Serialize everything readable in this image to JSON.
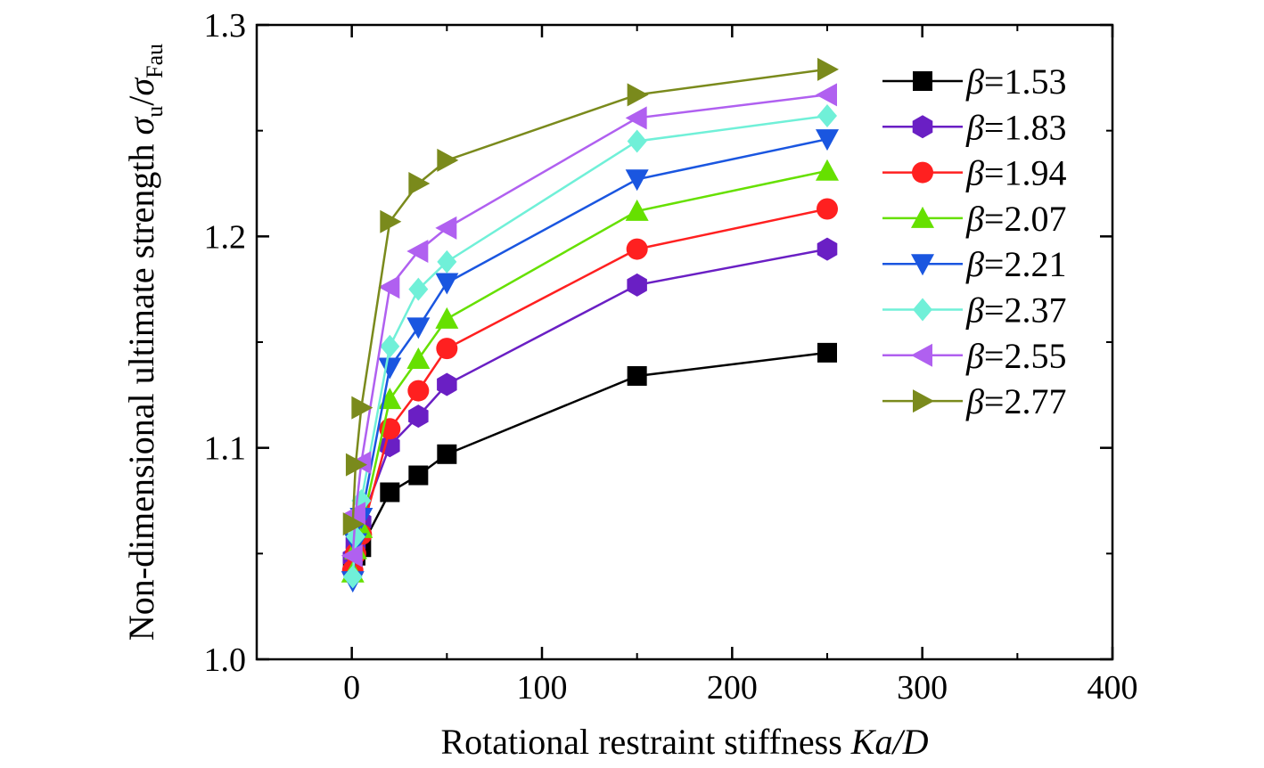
{
  "chart_data": {
    "type": "line",
    "xlabel": "Rotational restraint stiffness Ka/D",
    "xlabel_parts": {
      "prefix": "Rotational restraint stiffness ",
      "variable": "Ka/D"
    },
    "ylabel": "Non-dimensional ultimate strength σu/σFau",
    "ylabel_parts": {
      "prefix": "Non-dimensional ultimate strength ",
      "sym1": "σ",
      "sub1": "u",
      "slash": "/",
      "sym2": "σ",
      "sub2": "Fau"
    },
    "xlim": [
      -50,
      400
    ],
    "ylim": [
      1.0,
      1.3
    ],
    "xticks": [
      0,
      100,
      200,
      300,
      400
    ],
    "yticks": [
      1.0,
      1.1,
      1.2,
      1.3
    ],
    "x": [
      0.5,
      2,
      5,
      20,
      35,
      50,
      150,
      250
    ],
    "legend_position": "top-right",
    "series": [
      {
        "name": "β=1.53",
        "beta": "1.53",
        "color": "#000000",
        "marker": "square",
        "values": [
          1.046,
          1.049,
          1.053,
          1.079,
          1.087,
          1.097,
          1.134,
          1.145
        ]
      },
      {
        "name": "β=1.83",
        "beta": "1.83",
        "color": "#6a1fc4",
        "marker": "hexagon",
        "values": [
          1.048,
          1.055,
          1.065,
          1.101,
          1.115,
          1.13,
          1.177,
          1.194
        ]
      },
      {
        "name": "β=1.94",
        "beta": "1.94",
        "color": "#ff2020",
        "marker": "circle",
        "values": [
          1.042,
          1.05,
          1.059,
          1.109,
          1.127,
          1.147,
          1.194,
          1.213
        ]
      },
      {
        "name": "β=2.07",
        "beta": "2.07",
        "color": "#66e000",
        "marker": "triangle-up",
        "values": [
          1.041,
          1.052,
          1.062,
          1.123,
          1.142,
          1.161,
          1.212,
          1.231
        ]
      },
      {
        "name": "β=2.21",
        "beta": "2.21",
        "color": "#1a56e0",
        "marker": "triangle-down",
        "values": [
          1.037,
          1.055,
          1.067,
          1.138,
          1.157,
          1.178,
          1.227,
          1.246
        ]
      },
      {
        "name": "β=2.37",
        "beta": "2.37",
        "color": "#70f0d8",
        "marker": "diamond",
        "values": [
          1.039,
          1.058,
          1.075,
          1.148,
          1.175,
          1.188,
          1.245,
          1.257
        ]
      },
      {
        "name": "β=2.55",
        "beta": "2.55",
        "color": "#b060f0",
        "marker": "triangle-left",
        "values": [
          1.049,
          1.069,
          1.093,
          1.176,
          1.193,
          1.204,
          1.256,
          1.267
        ]
      },
      {
        "name": "β=2.77",
        "beta": "2.77",
        "color": "#7a8a1c",
        "marker": "triangle-right",
        "values": [
          1.064,
          1.092,
          1.119,
          1.207,
          1.225,
          1.236,
          1.267,
          1.279
        ]
      }
    ]
  }
}
